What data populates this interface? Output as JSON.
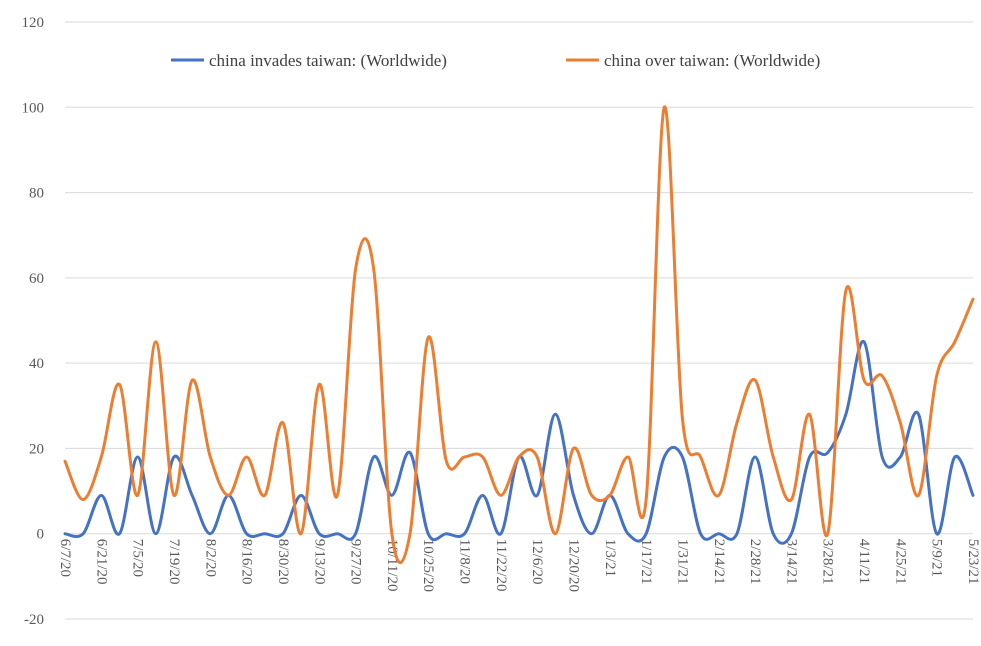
{
  "chart_data": {
    "type": "line",
    "title": "",
    "xlabel": "",
    "ylabel": "",
    "ylim": [
      -20,
      120
    ],
    "yticks": [
      "-20",
      "0",
      "20",
      "40",
      "60",
      "80",
      "100",
      "120"
    ],
    "grid": true,
    "legend_position": "top",
    "x": [
      "6/7/20",
      "6/14/20",
      "6/21/20",
      "6/28/20",
      "7/5/20",
      "7/12/20",
      "7/19/20",
      "7/26/20",
      "8/2/20",
      "8/9/20",
      "8/16/20",
      "8/23/20",
      "8/30/20",
      "9/6/20",
      "9/13/20",
      "9/20/20",
      "9/27/20",
      "10/4/20",
      "10/11/20",
      "10/18/20",
      "10/25/20",
      "11/1/20",
      "11/8/20",
      "11/15/20",
      "11/22/20",
      "11/29/20",
      "12/6/20",
      "12/13/20",
      "12/20/20",
      "12/27/20",
      "1/3/21",
      "1/10/21",
      "1/17/21",
      "1/24/21",
      "1/31/21",
      "2/7/21",
      "2/14/21",
      "2/21/21",
      "2/28/21",
      "3/7/21",
      "3/14/21",
      "3/21/21",
      "3/28/21",
      "4/4/21",
      "4/11/21",
      "4/18/21",
      "4/25/21",
      "5/2/21",
      "5/9/21",
      "5/16/21",
      "5/23/21"
    ],
    "x_tick_labels": [
      "6/7/20",
      "6/21/20",
      "7/5/20",
      "7/19/20",
      "8/2/20",
      "8/16/20",
      "8/30/20",
      "9/13/20",
      "9/27/20",
      "10/11/20",
      "10/25/20",
      "11/8/20",
      "11/22/20",
      "12/6/20",
      "12/20/20",
      "1/3/21",
      "1/17/21",
      "1/31/21",
      "2/14/21",
      "2/28/21",
      "3/14/21",
      "3/28/21",
      "4/11/21",
      "4/25/21",
      "5/9/21",
      "5/23/21"
    ],
    "series": [
      {
        "name": "china invades taiwan: (Worldwide)",
        "color": "#4472C4",
        "values": [
          0,
          0,
          9,
          0,
          18,
          0,
          18,
          9,
          0,
          9,
          0,
          0,
          0,
          9,
          0,
          0,
          0,
          18,
          9,
          19,
          0,
          0,
          0,
          9,
          0,
          18,
          9,
          28,
          9,
          0,
          9,
          0,
          0,
          18,
          18,
          0,
          0,
          0,
          18,
          0,
          0,
          18,
          19,
          28,
          45,
          18,
          18,
          28,
          0,
          18,
          9
        ]
      },
      {
        "name": "china over taiwan: (Worldwide)",
        "color": "#ED7D31",
        "values": [
          17,
          8,
          18,
          35,
          9,
          45,
          9,
          36,
          18,
          9,
          18,
          9,
          26,
          0,
          35,
          9,
          62,
          62,
          0,
          0,
          46,
          17,
          18,
          18,
          9,
          18,
          18,
          0,
          20,
          9,
          9,
          18,
          8,
          100,
          27,
          18,
          9,
          26,
          36,
          18,
          8,
          28,
          0,
          57,
          36,
          37,
          26,
          9,
          37,
          45,
          55
        ]
      }
    ]
  }
}
